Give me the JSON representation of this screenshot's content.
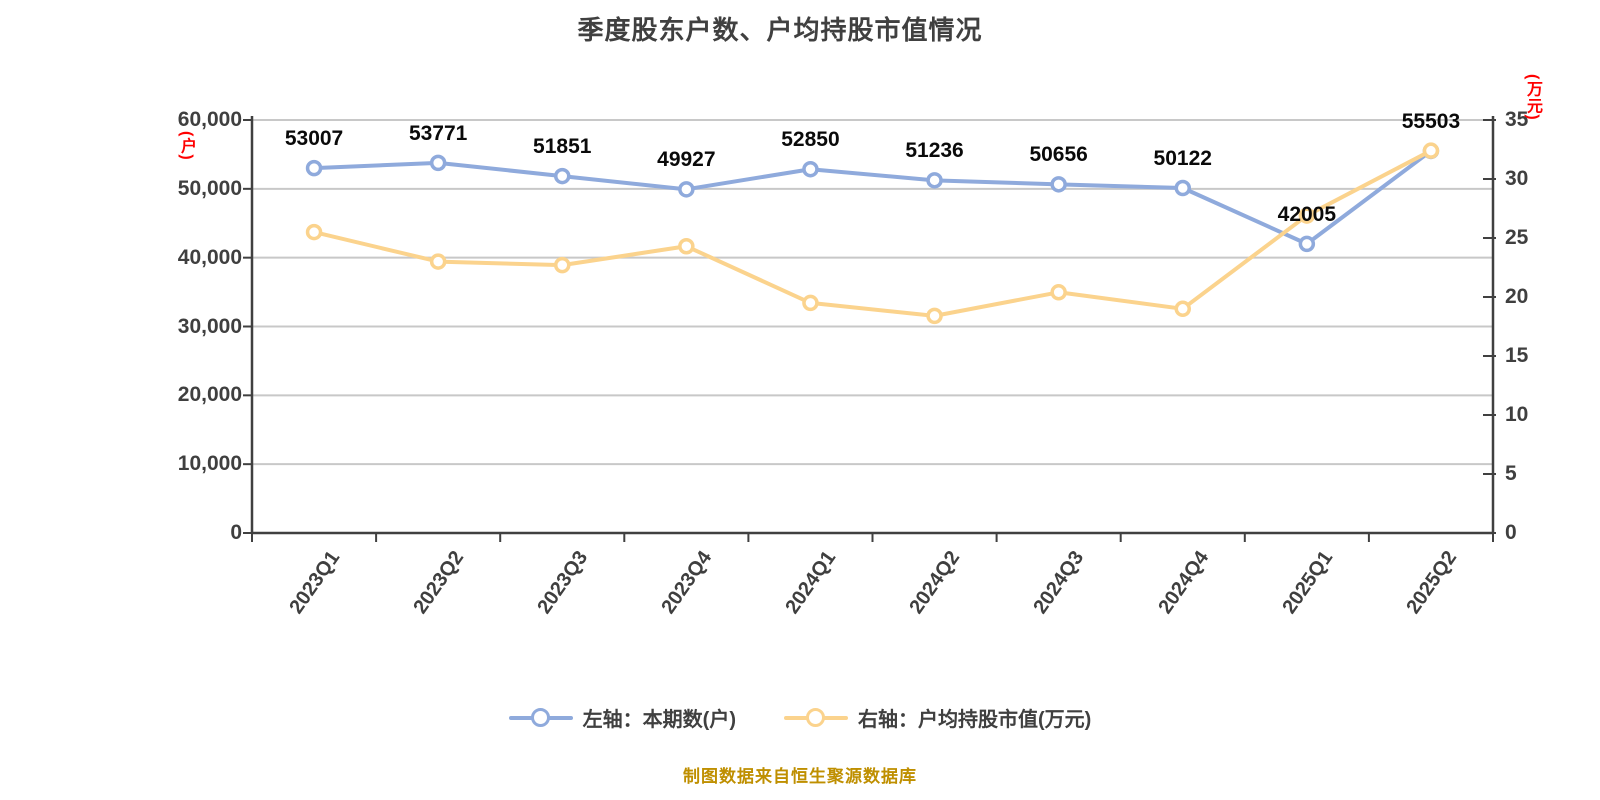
{
  "chart_data": {
    "type": "line",
    "title": "季度股东户数、户均持股市值情况",
    "source": "制图数据来自恒生聚源数据库",
    "categories": [
      "2023Q1",
      "2023Q2",
      "2023Q3",
      "2023Q4",
      "2024Q1",
      "2024Q2",
      "2024Q3",
      "2024Q4",
      "2025Q1",
      "2025Q2"
    ],
    "series": [
      {
        "name": "左轴：本期数(户)",
        "axis": "left",
        "color": "#8FAADC",
        "values": [
          53007,
          53771,
          51851,
          49927,
          52850,
          51236,
          50656,
          50122,
          42005,
          55503
        ],
        "data_labels": [
          "53007",
          "53771",
          "51851",
          "49927",
          "52850",
          "51236",
          "50656",
          "50122",
          "42005",
          "55503"
        ]
      },
      {
        "name": "右轴：户均持股市值(万元)",
        "axis": "right",
        "color": "#FBD38D",
        "values": [
          25.5,
          23.0,
          22.7,
          24.3,
          19.5,
          18.4,
          20.4,
          19.0,
          26.9,
          32.4
        ],
        "data_labels": []
      }
    ],
    "left_axis": {
      "unit": "(户)",
      "min": 0,
      "max": 60000,
      "tick_labels": [
        "60,000",
        "50,000",
        "40,000",
        "30,000",
        "20,000",
        "10,000",
        "0"
      ]
    },
    "right_axis": {
      "unit": "(万元)",
      "min": 0,
      "max": 35,
      "tick_labels": [
        "35",
        "30",
        "25",
        "20",
        "15",
        "10",
        "5",
        "0"
      ]
    },
    "grid": true,
    "legend_position": "bottom"
  }
}
